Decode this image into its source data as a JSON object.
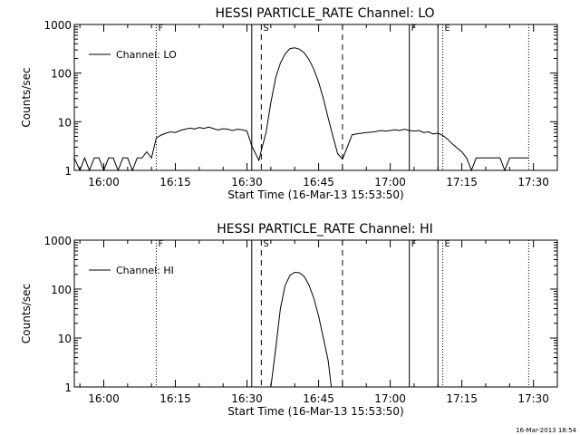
{
  "footer_timestamp": "16-Mar-2013 18:54",
  "chart_data": [
    {
      "type": "line",
      "title": "HESSI PARTICLE_RATE Channel: LO",
      "xlabel": "Start Time (16-Mar-13 15:53:50)",
      "ylabel": "Counts/sec",
      "yscale": "log",
      "ylim": [
        1,
        1000
      ],
      "xlim": [
        "15:53:50",
        "17:35:00"
      ],
      "x_ticks": [
        "16:00",
        "16:15",
        "16:30",
        "16:45",
        "17:00",
        "17:15",
        "17:30"
      ],
      "y_ticks": [
        "1",
        "10",
        "100",
        "1000"
      ],
      "legend": {
        "position": "top-left",
        "entries": [
          "Channel: LO"
        ]
      },
      "markers": [
        {
          "label": "F",
          "time": "16:11",
          "style": "dotted"
        },
        {
          "label": "",
          "time": "16:31",
          "style": "solid"
        },
        {
          "label": "S",
          "time": "16:33",
          "style": "dashed"
        },
        {
          "label": "",
          "time": "16:50",
          "style": "dashed"
        },
        {
          "label": "F",
          "time": "17:04",
          "style": "solid"
        },
        {
          "label": "",
          "time": "17:10",
          "style": "solid"
        },
        {
          "label": "E",
          "time": "17:11",
          "style": "dotted"
        },
        {
          "label": "",
          "time": "17:29",
          "style": "dotted"
        }
      ],
      "series": [
        {
          "name": "Channel: LO",
          "points": [
            [
              "15:53:50",
              1.8
            ],
            [
              "15:55",
              1.0
            ],
            [
              "15:56",
              1.8
            ],
            [
              "15:57",
              1.0
            ],
            [
              "15:58",
              1.8
            ],
            [
              "15:59",
              1.8
            ],
            [
              "16:00",
              1.0
            ],
            [
              "16:01",
              1.8
            ],
            [
              "16:02",
              1.8
            ],
            [
              "16:03",
              1.0
            ],
            [
              "16:04",
              1.8
            ],
            [
              "16:05",
              1.8
            ],
            [
              "16:06",
              1.0
            ],
            [
              "16:07",
              1.8
            ],
            [
              "16:08",
              1.8
            ],
            [
              "16:09",
              2.4
            ],
            [
              "16:10",
              1.8
            ],
            [
              "16:11",
              4.6
            ],
            [
              "16:12",
              5.3
            ],
            [
              "16:13",
              5.8
            ],
            [
              "16:14",
              6.2
            ],
            [
              "16:15",
              6.0
            ],
            [
              "16:16",
              6.6
            ],
            [
              "16:17",
              7.0
            ],
            [
              "16:18",
              7.4
            ],
            [
              "16:19",
              7.1
            ],
            [
              "16:20",
              7.6
            ],
            [
              "16:21",
              7.3
            ],
            [
              "16:22",
              7.8
            ],
            [
              "16:23",
              7.2
            ],
            [
              "16:24",
              6.8
            ],
            [
              "16:25",
              7.2
            ],
            [
              "16:26",
              7.0
            ],
            [
              "16:27",
              6.6
            ],
            [
              "16:28",
              7.0
            ],
            [
              "16:29",
              6.8
            ],
            [
              "16:30",
              6.4
            ],
            [
              "16:31",
              3.2
            ],
            [
              "16:32",
              2.0
            ],
            [
              "16:32:30",
              1.6
            ],
            [
              "16:33",
              2.6
            ],
            [
              "16:34",
              6.0
            ],
            [
              "16:35",
              25
            ],
            [
              "16:36",
              80
            ],
            [
              "16:37",
              160
            ],
            [
              "16:38",
              250
            ],
            [
              "16:39",
              320
            ],
            [
              "16:40",
              330
            ],
            [
              "16:41",
              310
            ],
            [
              "16:42",
              260
            ],
            [
              "16:43",
              190
            ],
            [
              "16:44",
              120
            ],
            [
              "16:45",
              65
            ],
            [
              "16:46",
              30
            ],
            [
              "16:47",
              12
            ],
            [
              "16:48",
              5
            ],
            [
              "16:49",
              2.2
            ],
            [
              "16:50",
              1.7
            ],
            [
              "16:51",
              3.0
            ],
            [
              "16:52",
              5.4
            ],
            [
              "16:53",
              5.6
            ],
            [
              "16:54",
              5.8
            ],
            [
              "16:55",
              6.0
            ],
            [
              "16:56",
              6.1
            ],
            [
              "16:57",
              6.3
            ],
            [
              "16:58",
              6.6
            ],
            [
              "16:59",
              6.4
            ],
            [
              "17:00",
              6.6
            ],
            [
              "17:01",
              6.8
            ],
            [
              "17:02",
              6.6
            ],
            [
              "17:03",
              7.0
            ],
            [
              "17:04",
              6.6
            ],
            [
              "17:05",
              6.4
            ],
            [
              "17:06",
              6.6
            ],
            [
              "17:07",
              6.0
            ],
            [
              "17:08",
              6.2
            ],
            [
              "17:09",
              5.6
            ],
            [
              "17:10",
              5.8
            ],
            [
              "17:11",
              5.2
            ],
            [
              "17:12",
              4.4
            ],
            [
              "17:13",
              3.5
            ],
            [
              "17:14",
              2.9
            ],
            [
              "17:15",
              2.4
            ],
            [
              "17:16",
              1.8
            ],
            [
              "17:17",
              1.0
            ],
            [
              "17:18",
              1.8
            ],
            [
              "17:19",
              1.8
            ],
            [
              "17:20",
              1.8
            ],
            [
              "17:21",
              1.8
            ],
            [
              "17:22",
              1.8
            ],
            [
              "17:23",
              1.8
            ],
            [
              "17:24",
              1.0
            ],
            [
              "17:25",
              1.8
            ],
            [
              "17:29",
              1.8
            ]
          ]
        }
      ]
    },
    {
      "type": "line",
      "title": "HESSI PARTICLE_RATE Channel: HI",
      "xlabel": "Start Time (16-Mar-13 15:53:50)",
      "ylabel": "Counts/sec",
      "yscale": "log",
      "ylim": [
        1,
        1000
      ],
      "xlim": [
        "15:53:50",
        "17:35:00"
      ],
      "x_ticks": [
        "16:00",
        "16:15",
        "16:30",
        "16:45",
        "17:00",
        "17:15",
        "17:30"
      ],
      "y_ticks": [
        "1",
        "10",
        "100",
        "1000"
      ],
      "legend": {
        "position": "top-left",
        "entries": [
          "Channel: HI"
        ]
      },
      "markers": [
        {
          "label": "F",
          "time": "16:11",
          "style": "dotted"
        },
        {
          "label": "",
          "time": "16:31",
          "style": "solid"
        },
        {
          "label": "S",
          "time": "16:33",
          "style": "dashed"
        },
        {
          "label": "",
          "time": "16:50",
          "style": "dashed"
        },
        {
          "label": "F",
          "time": "17:04",
          "style": "solid"
        },
        {
          "label": "",
          "time": "17:10",
          "style": "solid"
        },
        {
          "label": "E",
          "time": "17:11",
          "style": "dotted"
        },
        {
          "label": "",
          "time": "17:29",
          "style": "dotted"
        }
      ],
      "series": [
        {
          "name": "Channel: HI",
          "points": [
            [
              "16:35",
              1.0
            ],
            [
              "16:36",
              6.0
            ],
            [
              "16:37",
              40
            ],
            [
              "16:38",
              120
            ],
            [
              "16:39",
              190
            ],
            [
              "16:40",
              220
            ],
            [
              "16:41",
              215
            ],
            [
              "16:42",
              180
            ],
            [
              "16:43",
              120
            ],
            [
              "16:44",
              65
            ],
            [
              "16:45",
              28
            ],
            [
              "16:46",
              10
            ],
            [
              "16:47",
              3.5
            ],
            [
              "16:47:40",
              1.0
            ]
          ]
        }
      ]
    }
  ]
}
